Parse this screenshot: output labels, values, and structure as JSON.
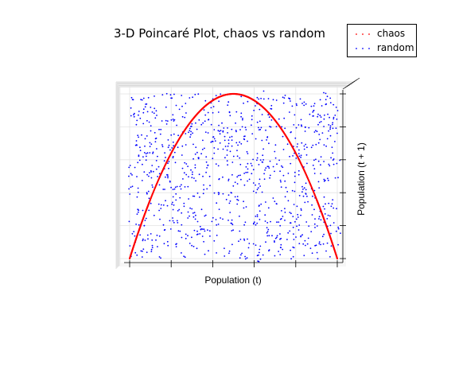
{
  "chart_data": {
    "type": "scatter",
    "projection": "3d",
    "title": "3-D Poincaré Plot, chaos vs random",
    "xlabel": "Population (t)",
    "ylabel": "Population (t + 1)",
    "zlabel": "",
    "xlim": [
      0,
      1
    ],
    "ylim": [
      0,
      1
    ],
    "grid": true,
    "legend_position": "top-right",
    "series": [
      {
        "name": "chaos",
        "marker": "dot",
        "color": "#ff0000",
        "relation": "logistic map, r = 4",
        "x": [
          0.0,
          0.025,
          0.05,
          0.075,
          0.1,
          0.15,
          0.2,
          0.25,
          0.3,
          0.35,
          0.4,
          0.45,
          0.5,
          0.55,
          0.6,
          0.65,
          0.7,
          0.75,
          0.8,
          0.85,
          0.9,
          0.925,
          0.95,
          0.975,
          1.0
        ],
        "y": [
          0.0,
          0.0975,
          0.19,
          0.2775,
          0.36,
          0.51,
          0.64,
          0.75,
          0.84,
          0.91,
          0.96,
          0.99,
          1.0,
          0.99,
          0.96,
          0.91,
          0.84,
          0.75,
          0.64,
          0.51,
          0.36,
          0.2775,
          0.19,
          0.0975,
          0.0
        ]
      },
      {
        "name": "random",
        "marker": "dot",
        "color": "#0000ff",
        "distribution": "uniform",
        "x_range": [
          0,
          1
        ],
        "y_range": [
          0,
          1
        ],
        "count": 1000
      }
    ]
  }
}
